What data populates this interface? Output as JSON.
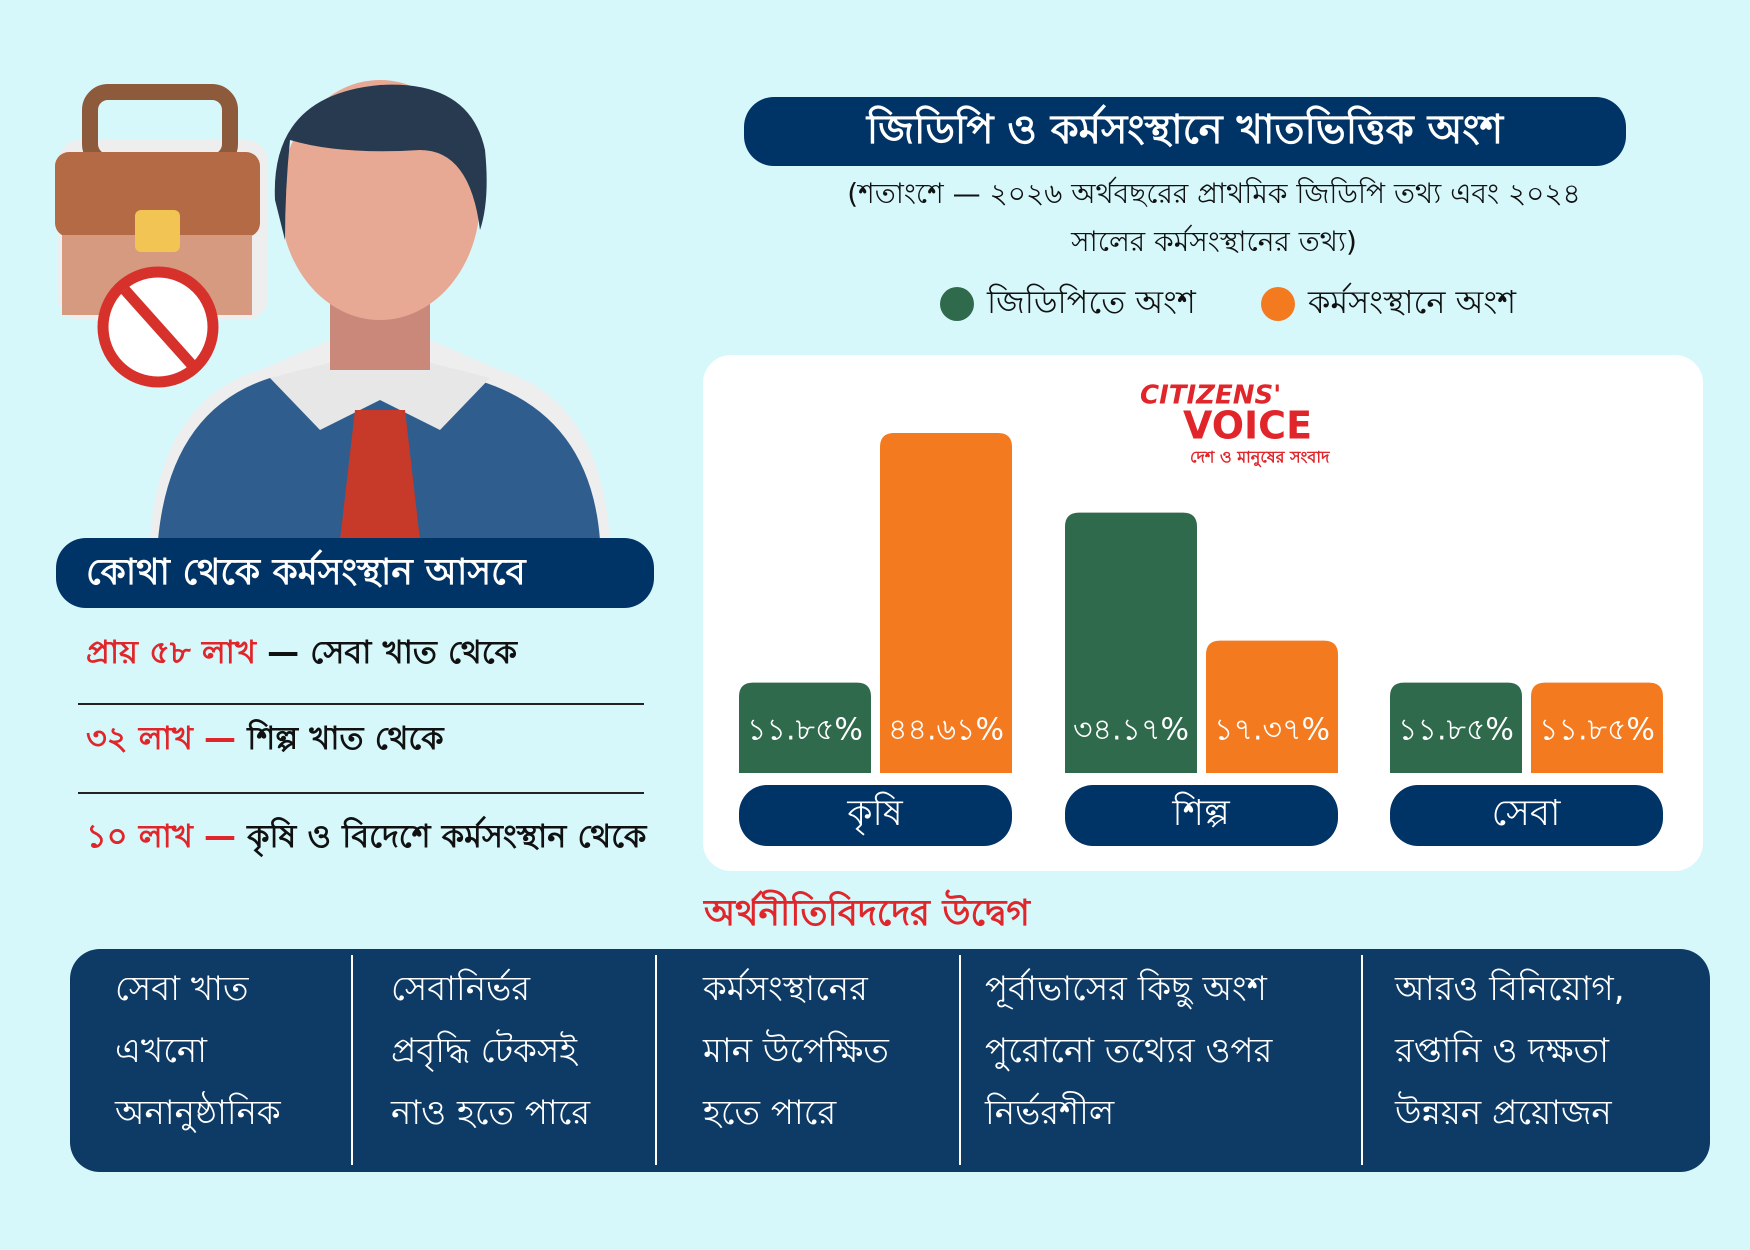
{
  "header": {
    "title": "জিডিপি ও কর্মসংস্থানে খাতভিত্তিক অংশ",
    "subtitle_lines": [
      "(শতাংশে — ২০২৬ অর্থবছরের প্রাথমিক জিডিপি তথ্য এবং ২০২৪",
      "সালের কর্মসংস্থানের তথ্য)"
    ]
  },
  "chart_data": {
    "type": "bar",
    "categories": [
      "কৃষি",
      "শিল্প",
      "সেবা"
    ],
    "series": [
      {
        "name": "জিডিপিতে অংশ",
        "color": "#2e6a4b",
        "values": [
          11.85,
          34.17,
          11.85
        ],
        "value_labels": [
          "১১.৮৫%",
          "৩৪.১৭%",
          "১১.৮৫%"
        ]
      },
      {
        "name": "কর্মসংস্থানে অংশ",
        "color": "#f47a20",
        "values": [
          44.61,
          17.37,
          11.85
        ],
        "value_labels": [
          "৪৪.৬১%",
          "১৭.৩৭%",
          "১১.৮৫%"
        ]
      }
    ]
  },
  "logo": {
    "line1": "CITIZENS'",
    "line2": "VOICE",
    "tagline": "দেশ ও মানুষের সংবাদ"
  },
  "sources": {
    "heading": "কোথা থেকে কর্মসংস্থান আসবে",
    "items": [
      {
        "highlight": "প্রায় ৫৮ লাখ",
        "text": "— সেবা খাত থেকে"
      },
      {
        "highlight": "৩২ লাখ —",
        "text": "শিল্প খাত থেকে"
      },
      {
        "highlight": "১০ লাখ —",
        "text": "কৃষি ও বিদেশে কর্মসংস্থান থেকে"
      }
    ]
  },
  "concerns": {
    "heading": "অর্থনীতিবিদদের উদ্বেগ",
    "items": [
      [
        "সেবা খাত",
        "এখনো",
        "অনানুষ্ঠানিক"
      ],
      [
        "সেবানির্ভর",
        "প্রবৃদ্ধি টেকসই",
        "নাও হতে পারে"
      ],
      [
        "কর্মসংস্থানের",
        "মান উপেক্ষিত",
        "হতে পারে"
      ],
      [
        "পূর্বাভাসের কিছু অংশ",
        "পুরোনো তথ্যের ওপর",
        "নির্ভরশীল"
      ],
      [
        "আরও বিনিয়োগ,",
        "রপ্তানি ও দক্ষতা",
        "উন্নয়ন প্রয়োজন"
      ]
    ]
  }
}
